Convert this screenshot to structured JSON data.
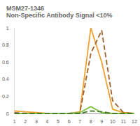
{
  "chart_data": {
    "type": "line",
    "title": "MSM27-1346",
    "subtitle": "Non-Specific Antibody Signal <10%",
    "categories": [
      "1",
      "2",
      "3",
      "4",
      "5",
      "6",
      "7",
      "8",
      "9",
      "10",
      "11",
      "12"
    ],
    "series": [
      {
        "color": "#f0a030",
        "line_style": "solid",
        "values": [
          0.03,
          0.02,
          0.01,
          0,
          0,
          0,
          0.02,
          1.0,
          0.6,
          0.05,
          0.01,
          0
        ]
      },
      {
        "color": "#a0622a",
        "line_style": "dashed",
        "values": [
          0.01,
          0,
          0,
          0,
          0,
          0,
          0.01,
          0.7,
          0.97,
          0.15,
          0.01,
          0
        ]
      },
      {
        "color": "#7dc242",
        "line_style": "solid",
        "values": [
          0,
          0,
          0,
          0,
          0,
          0,
          0.01,
          0.08,
          0.01,
          0,
          0,
          0
        ]
      },
      {
        "color": "#4a7a2a",
        "line_style": "dashed",
        "values": [
          0,
          0,
          0,
          0,
          0,
          0,
          0,
          0.03,
          0.02,
          0,
          0,
          0
        ]
      }
    ],
    "ylim": [
      0,
      1
    ],
    "yticks": [
      0,
      0.2,
      0.4,
      0.6,
      0.8,
      1
    ],
    "grid": false
  }
}
